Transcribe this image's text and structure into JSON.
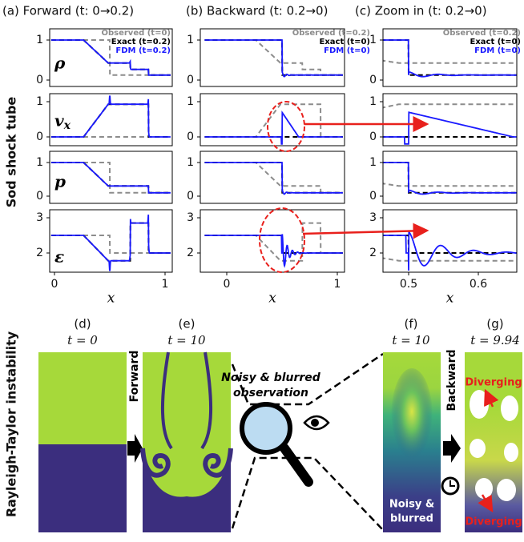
{
  "sod": {
    "row_label": "Sod shock tube",
    "columns": [
      {
        "title": "(a) Forward (t: 0→0.2)",
        "legend": [
          "Observed (t=0)",
          "Exact (t=0.2)",
          "FDM (t=0.2)"
        ],
        "xticks": [
          "0",
          "1"
        ],
        "xlabel": "x"
      },
      {
        "title": "(b) Backward (t: 0.2→0)",
        "legend": [
          "Observed (t=0.2)",
          "Exact (t=0)",
          "FDM (t=0)"
        ],
        "xticks": [
          "0",
          "1"
        ],
        "xlabel": "x"
      },
      {
        "title": "(c) Zoom in (t: 0.2→0)",
        "legend": [
          "Observed (t=0.2)",
          "Exact (t=0)",
          "FDM (t=0)"
        ],
        "xticks": [
          "0.5",
          "0.6"
        ],
        "xlabel": "x"
      }
    ],
    "rows": [
      {
        "symbol": "ρ",
        "yticks": [
          "0",
          "1"
        ]
      },
      {
        "symbol": "v",
        "sub": "x",
        "yticks": [
          "0",
          "1"
        ]
      },
      {
        "symbol": "p",
        "yticks": [
          "0",
          "1"
        ]
      },
      {
        "symbol": "ε",
        "yticks": [
          "2",
          "3"
        ]
      }
    ]
  },
  "rt": {
    "row_label": "Rayleigh-Taylor instability",
    "panels": [
      {
        "label": "(d)",
        "time": "t = 0"
      },
      {
        "label": "(e)",
        "time": "t = 10"
      },
      {
        "label": "(f)",
        "time": "t = 10"
      },
      {
        "label": "(g)",
        "time": "t = 9.94"
      }
    ],
    "forward": "Forward",
    "backward": "Backward",
    "observation": [
      "Noisy & blurred",
      "observation"
    ],
    "overlay": [
      "Noisy &",
      "blurred"
    ],
    "diverging": [
      "Diverging",
      "Diverging"
    ]
  }
}
